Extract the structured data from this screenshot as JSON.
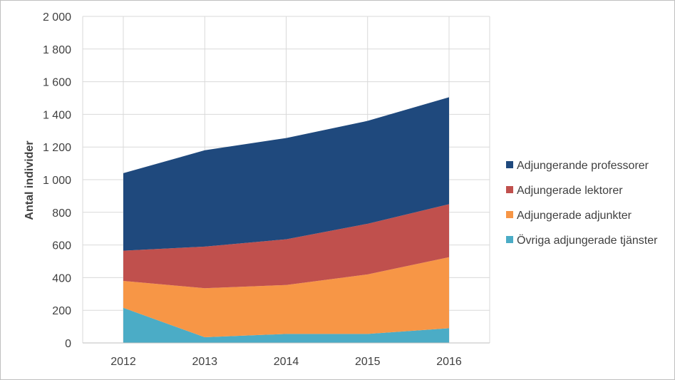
{
  "chart_data": {
    "type": "area",
    "stacked": true,
    "title": "",
    "xlabel": "",
    "ylabel": "Antal individer",
    "x": [
      "2012",
      "2013",
      "2014",
      "2015",
      "2016"
    ],
    "ylim": [
      0,
      2000
    ],
    "yticks": [
      0,
      200,
      400,
      600,
      800,
      1000,
      1200,
      1400,
      1600,
      1800,
      2000
    ],
    "ytick_labels": [
      "0",
      "200",
      "400",
      "600",
      "800",
      "1 000",
      "1 200",
      "1 400",
      "1 600",
      "1 800",
      "2 000"
    ],
    "grid": true,
    "legend_position": "right",
    "series": [
      {
        "name": "Övriga adjungerade tjänster",
        "color": "#4bacc6",
        "values": [
          215,
          35,
          55,
          55,
          90
        ]
      },
      {
        "name": "Adjungerade adjunkter",
        "color": "#f79646",
        "values": [
          165,
          300,
          300,
          365,
          435
        ]
      },
      {
        "name": "Adjungerade lektorer",
        "color": "#c0504d",
        "values": [
          185,
          255,
          280,
          310,
          325
        ]
      },
      {
        "name": "Adjungerande professorer",
        "color": "#1f497d",
        "values": [
          475,
          590,
          620,
          630,
          655
        ]
      }
    ],
    "legend_order": [
      3,
      2,
      1,
      0
    ]
  }
}
